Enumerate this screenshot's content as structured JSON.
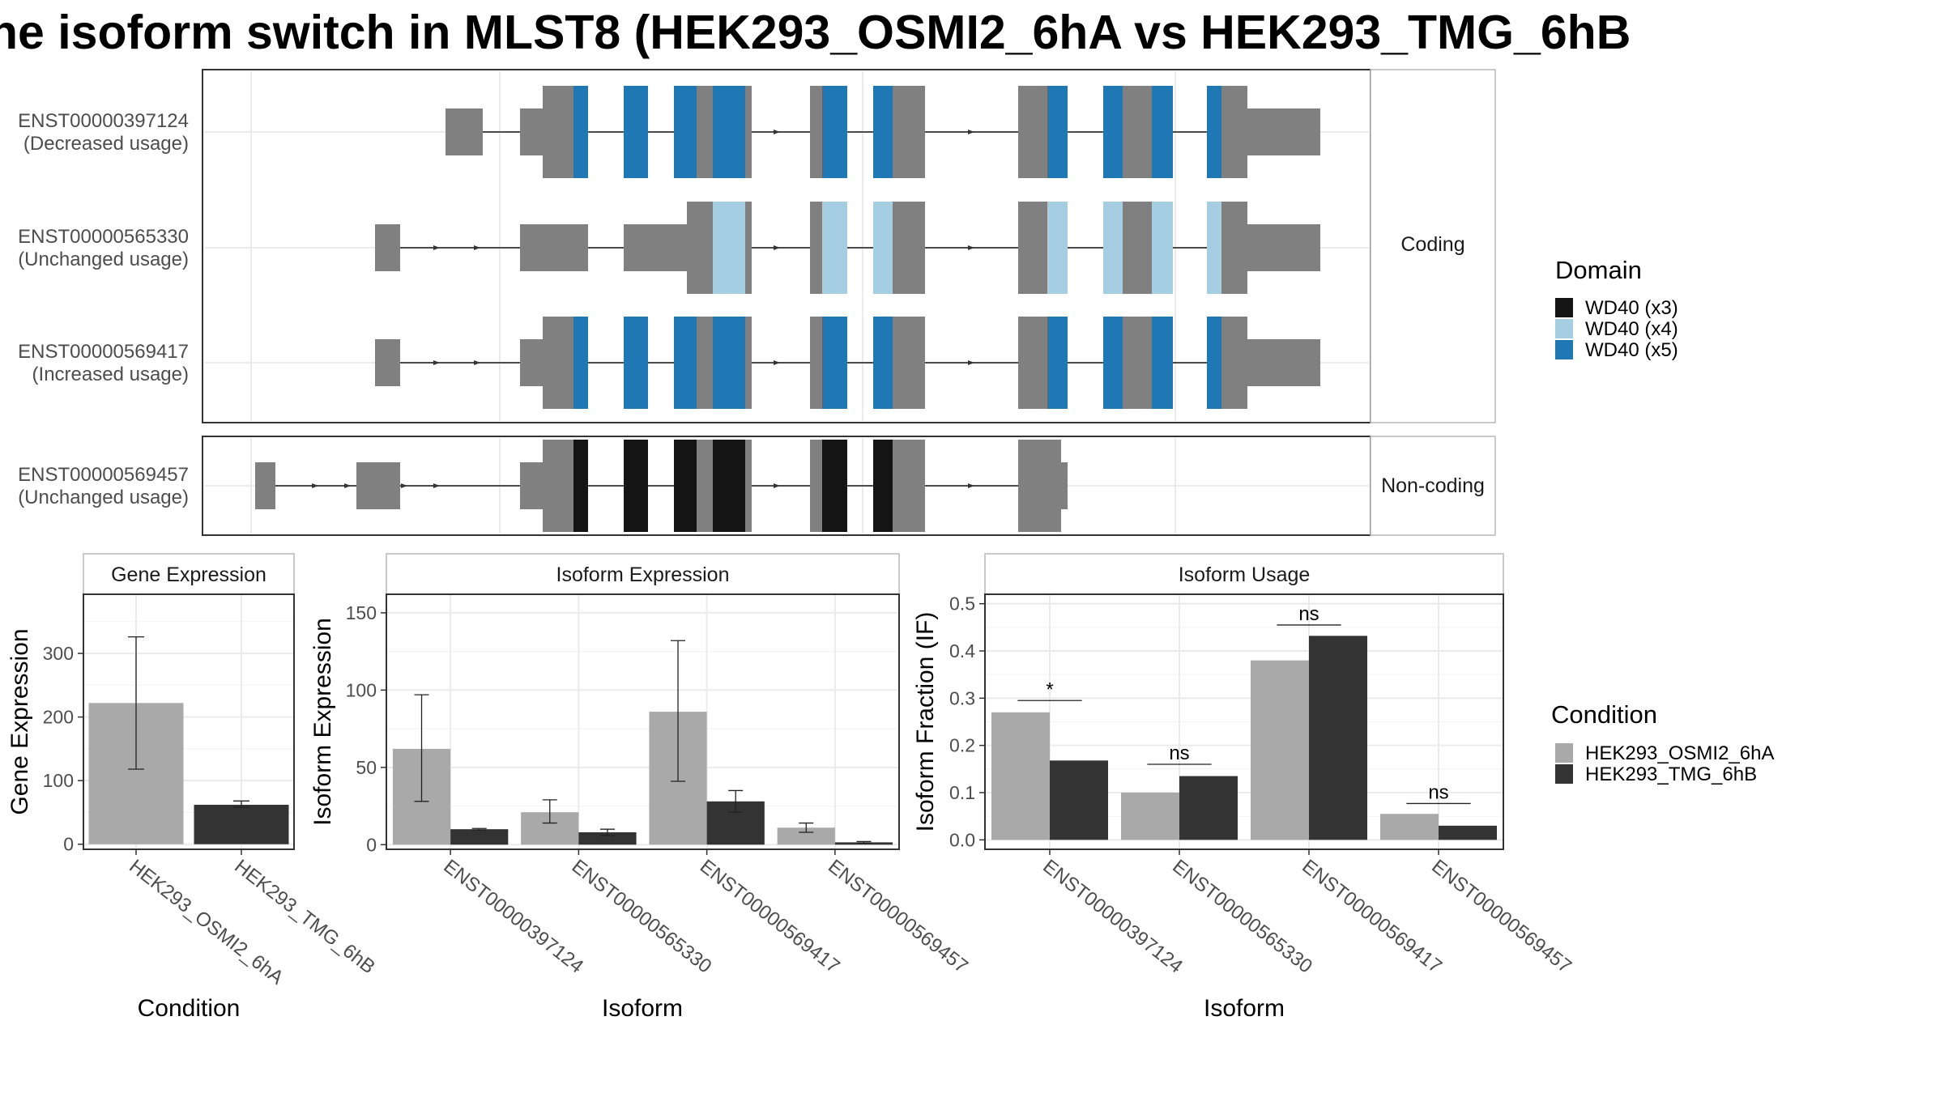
{
  "title": "he isoform switch in MLST8 (HEK293_OSMI2_6hA vs HEK293_TMG_6hB",
  "structure": {
    "coding_strip": "Coding",
    "noncoding_strip": "Non-coding",
    "isoforms": [
      {
        "id": "ENST00000397124",
        "usage": "(Decreased usage)",
        "group": "coding",
        "domain": "WD40 (x5)"
      },
      {
        "id": "ENST00000565330",
        "usage": "(Unchanged usage)",
        "group": "coding",
        "domain": "WD40 (x4)"
      },
      {
        "id": "ENST00000569417",
        "usage": "(Increased usage)",
        "group": "coding",
        "domain": "WD40 (x5)"
      },
      {
        "id": "ENST00000569457",
        "usage": "(Unchanged usage)",
        "group": "noncoding",
        "domain": "WD40 (x3)"
      }
    ]
  },
  "domain_legend": {
    "title": "Domain",
    "items": [
      {
        "label": "WD40 (x3)",
        "color": "#141414"
      },
      {
        "label": "WD40 (x4)",
        "color": "#a6cee3"
      },
      {
        "label": "WD40 (x5)",
        "color": "#1f78b4"
      }
    ]
  },
  "condition_legend": {
    "title": "Condition",
    "items": [
      {
        "label": "HEK293_OSMI2_6hA",
        "color": "#a9a9a9"
      },
      {
        "label": "HEK293_TMG_6hB",
        "color": "#333333"
      }
    ]
  },
  "chart_data": [
    {
      "type": "bar",
      "title": "Gene Expression",
      "xlabel": "Condition",
      "ylabel": "Gene Expression",
      "categories": [
        "HEK293_OSMI2_6hA",
        "HEK293_TMG_6hB"
      ],
      "values": [
        222,
        62
      ],
      "error_low": [
        118,
        58
      ],
      "error_high": [
        326,
        68
      ],
      "colors": [
        "#a9a9a9",
        "#333333"
      ],
      "yticks": [
        0,
        100,
        200,
        300
      ],
      "ylim": [
        -8,
        393
      ],
      "grid": true
    },
    {
      "type": "bar",
      "title": "Isoform Expression",
      "xlabel": "Isoform",
      "ylabel": "Isoform Expression",
      "categories": [
        "ENST00000397124",
        "ENST00000565330",
        "ENST00000569417",
        "ENST00000569457"
      ],
      "series": [
        {
          "name": "HEK293_OSMI2_6hA",
          "values": [
            62,
            21,
            86,
            11
          ],
          "error_low": [
            28,
            14,
            41,
            8
          ],
          "error_high": [
            97,
            29,
            132,
            14
          ]
        },
        {
          "name": "HEK293_TMG_6hB",
          "values": [
            10,
            8,
            28,
            1.5
          ],
          "error_low": [
            9.5,
            6,
            21,
            1
          ],
          "error_high": [
            10.5,
            10,
            35,
            2
          ]
        }
      ],
      "yticks": [
        0,
        50,
        100,
        150
      ],
      "ylim": [
        -3,
        162
      ],
      "grid": true
    },
    {
      "type": "bar",
      "title": "Isoform Usage",
      "xlabel": "Isoform",
      "ylabel": "Isoform Fraction (IF)",
      "categories": [
        "ENST00000397124",
        "ENST00000565330",
        "ENST00000569417",
        "ENST00000569457"
      ],
      "series": [
        {
          "name": "HEK293_OSMI2_6hA",
          "values": [
            0.27,
            0.1,
            0.38,
            0.055
          ]
        },
        {
          "name": "HEK293_TMG_6hB",
          "values": [
            0.168,
            0.135,
            0.432,
            0.03
          ]
        }
      ],
      "significance": [
        "*",
        "ns",
        "ns",
        "ns"
      ],
      "sig_level": [
        0.295,
        0.16,
        0.455,
        0.077
      ],
      "yticks": [
        0.0,
        0.1,
        0.2,
        0.3,
        0.4,
        0.5
      ],
      "ylim": [
        -0.02,
        0.52
      ],
      "grid": true
    }
  ]
}
